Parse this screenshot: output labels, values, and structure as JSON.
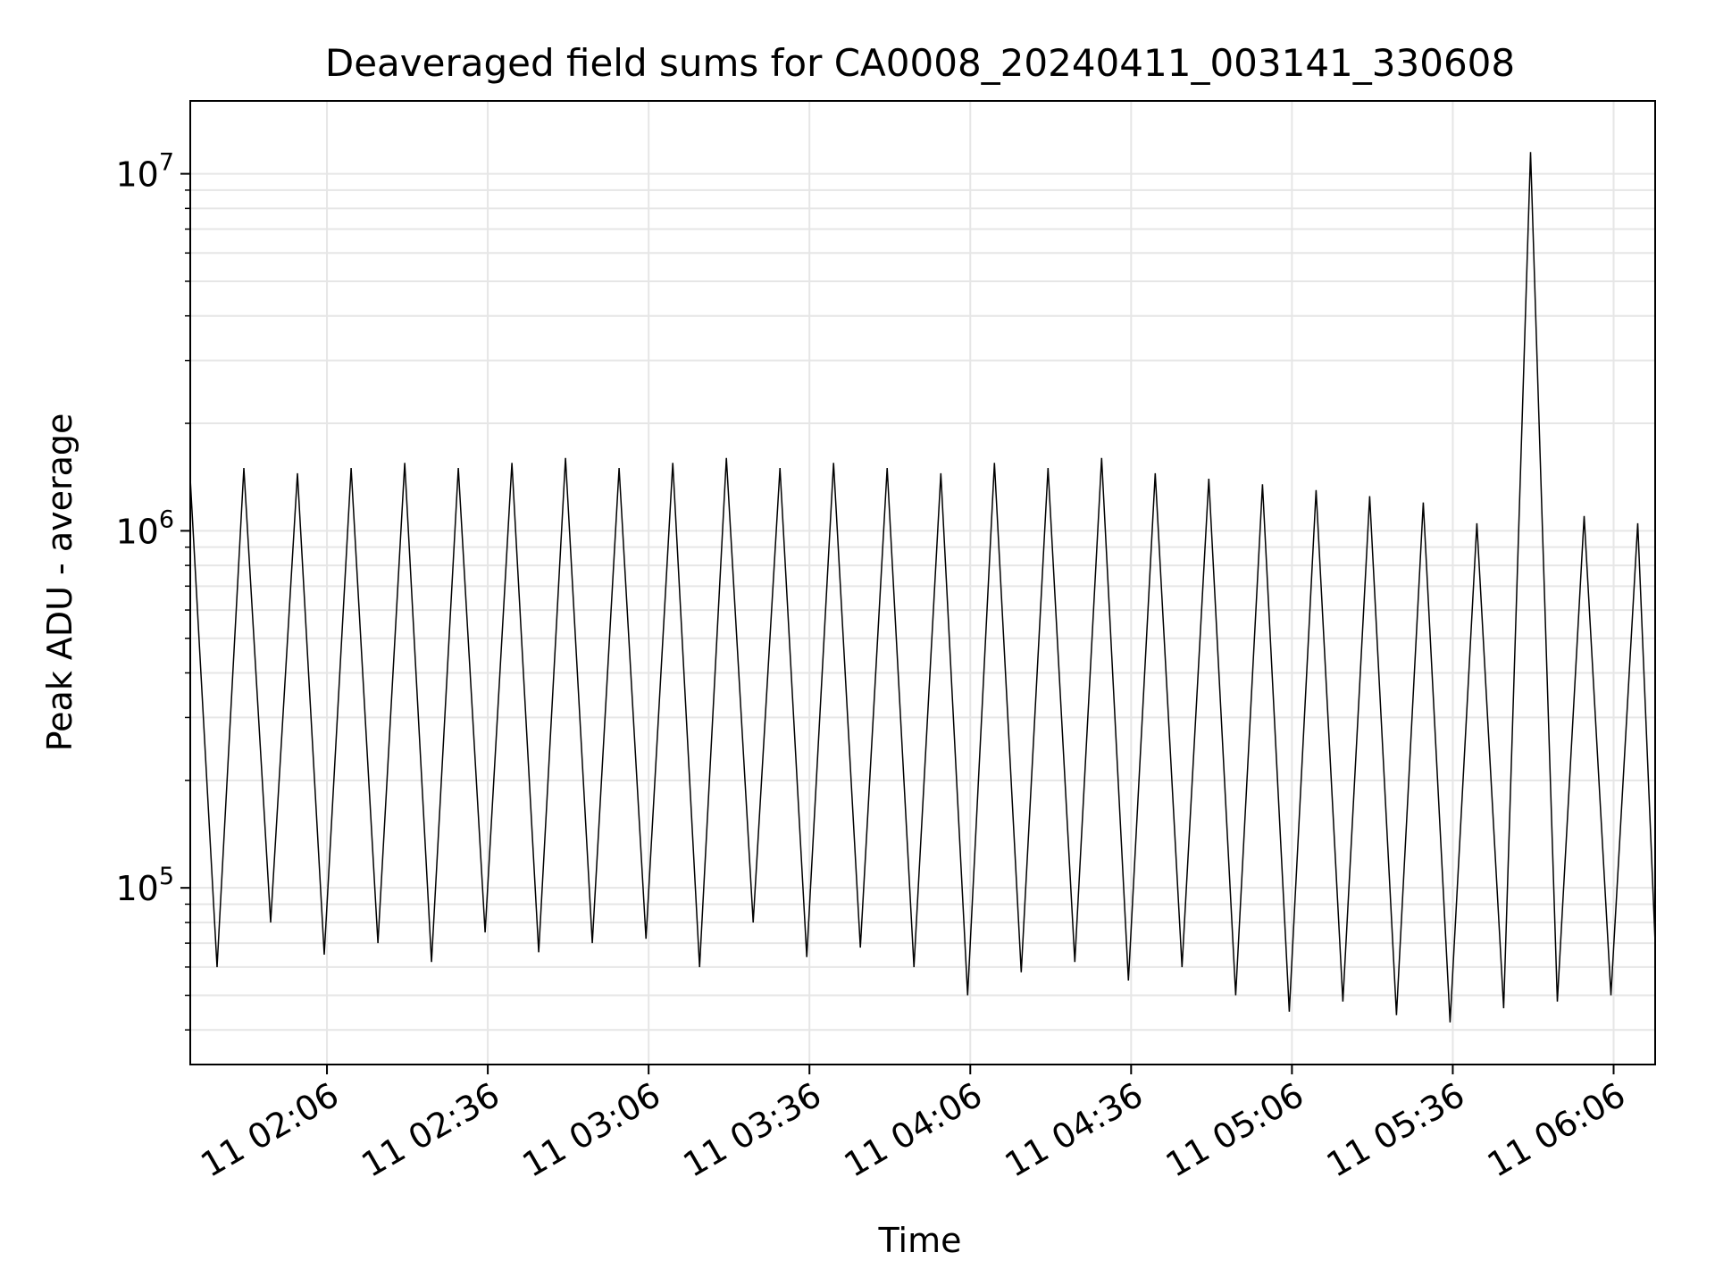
{
  "chart_data": {
    "type": "line",
    "title": "Deaveraged field sums for CA0008_20240411_003141_330608",
    "xlabel": "Time",
    "ylabel": "Peak ADU - average",
    "yscale": "log",
    "ylim": [
      32000,
      16000000
    ],
    "xlim": [
      "2024-04-11 01:40:30",
      "2024-04-11 06:13:45"
    ],
    "grid": true,
    "line_color": "#000000",
    "x_ticks": [
      {
        "t": "2024-04-11 02:06:00",
        "label": "11 02:06"
      },
      {
        "t": "2024-04-11 02:36:00",
        "label": "11 02:36"
      },
      {
        "t": "2024-04-11 03:06:00",
        "label": "11 03:06"
      },
      {
        "t": "2024-04-11 03:36:00",
        "label": "11 03:36"
      },
      {
        "t": "2024-04-11 04:06:00",
        "label": "11 04:06"
      },
      {
        "t": "2024-04-11 04:36:00",
        "label": "11 04:36"
      },
      {
        "t": "2024-04-11 05:06:00",
        "label": "11 05:06"
      },
      {
        "t": "2024-04-11 05:36:00",
        "label": "11 05:36"
      },
      {
        "t": "2024-04-11 06:06:00",
        "label": "11 06:06"
      }
    ],
    "y_ticks": [
      {
        "v": 100000,
        "base": "10",
        "exp": "5"
      },
      {
        "v": 1000000,
        "base": "10",
        "exp": "6"
      },
      {
        "v": 10000000,
        "base": "10",
        "exp": "7"
      }
    ],
    "series": [
      {
        "x": [
          "2024-04-11 01:40:30",
          "2024-04-11 01:45:30",
          "2024-04-11 01:50:30",
          "2024-04-11 01:55:30",
          "2024-04-11 02:00:30",
          "2024-04-11 02:05:30",
          "2024-04-11 02:10:30",
          "2024-04-11 02:15:30",
          "2024-04-11 02:20:30",
          "2024-04-11 02:25:30",
          "2024-04-11 02:30:30",
          "2024-04-11 02:35:30",
          "2024-04-11 02:40:30",
          "2024-04-11 02:45:30",
          "2024-04-11 02:50:30",
          "2024-04-11 02:55:30",
          "2024-04-11 03:00:30",
          "2024-04-11 03:05:30",
          "2024-04-11 03:10:30",
          "2024-04-11 03:15:30",
          "2024-04-11 03:20:30",
          "2024-04-11 03:25:30",
          "2024-04-11 03:30:30",
          "2024-04-11 03:35:30",
          "2024-04-11 03:40:30",
          "2024-04-11 03:45:30",
          "2024-04-11 03:50:30",
          "2024-04-11 03:55:30",
          "2024-04-11 04:00:30",
          "2024-04-11 04:05:30",
          "2024-04-11 04:10:30",
          "2024-04-11 04:15:30",
          "2024-04-11 04:20:30",
          "2024-04-11 04:25:30",
          "2024-04-11 04:30:30",
          "2024-04-11 04:35:30",
          "2024-04-11 04:40:30",
          "2024-04-11 04:45:30",
          "2024-04-11 04:50:30",
          "2024-04-11 04:55:30",
          "2024-04-11 05:00:30",
          "2024-04-11 05:05:30",
          "2024-04-11 05:10:30",
          "2024-04-11 05:15:30",
          "2024-04-11 05:20:30",
          "2024-04-11 05:25:30",
          "2024-04-11 05:30:30",
          "2024-04-11 05:35:30",
          "2024-04-11 05:40:30",
          "2024-04-11 05:45:30",
          "2024-04-11 05:50:30",
          "2024-04-11 05:55:30",
          "2024-04-11 06:00:30",
          "2024-04-11 06:05:30",
          "2024-04-11 06:10:30",
          "2024-04-11 06:13:45"
        ],
        "y": [
          1400000,
          60000,
          1500000,
          80000,
          1450000,
          65000,
          1500000,
          70000,
          1550000,
          62000,
          1500000,
          75000,
          1550000,
          66000,
          1600000,
          70000,
          1500000,
          72000,
          1550000,
          60000,
          1600000,
          80000,
          1500000,
          64000,
          1550000,
          68000,
          1500000,
          60000,
          1450000,
          50000,
          1550000,
          58000,
          1500000,
          62000,
          1600000,
          55000,
          1450000,
          60000,
          1400000,
          50000,
          1350000,
          45000,
          1300000,
          48000,
          1250000,
          44000,
          1200000,
          42000,
          1050000,
          46000,
          11500000,
          48000,
          1100000,
          50000,
          1050000,
          70000
        ]
      }
    ]
  }
}
